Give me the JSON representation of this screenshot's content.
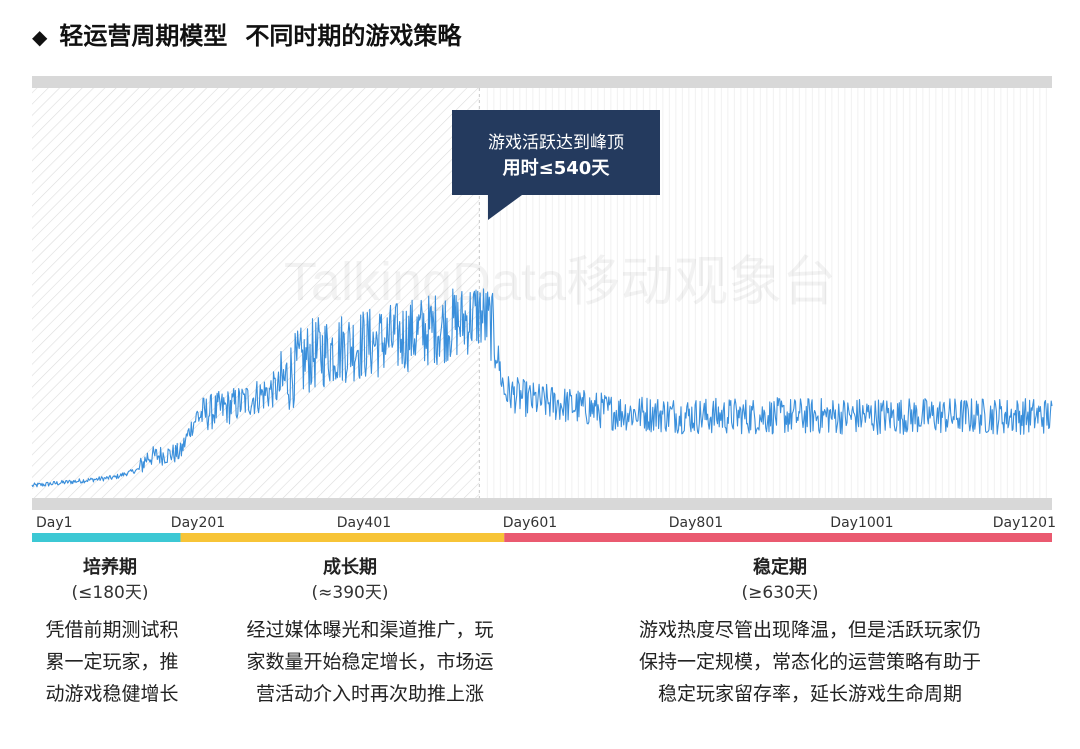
{
  "header": {
    "title_main": "轻运营周期模型",
    "title_sub": "不同时期的游戏策略"
  },
  "callout": {
    "line1": "游戏活跃达到峰顶",
    "line2": "用时≤540天"
  },
  "watermark": "TalkingData移动观象台",
  "colors": {
    "line": "#3a8fdb",
    "callout_bg": "#243a5e",
    "phase1": "#3cc8d4",
    "phase2": "#f7c437",
    "phase3": "#ea5a70",
    "band": "#d8d8d8"
  },
  "phases": [
    {
      "name": "培养期",
      "duration": "(≤180天)",
      "desc": [
        "凭借前期测试积",
        "累一定玩家，推",
        "动游戏稳健增长"
      ]
    },
    {
      "name": "成长期",
      "duration": "(≈390天)",
      "desc": [
        "经过媒体曝光和渠道推广，玩",
        "家数量开始稳定增长，市场运",
        "营活动介入时再次助推上涨"
      ]
    },
    {
      "name": "稳定期",
      "duration": "(≥630天)",
      "desc": [
        "游戏热度尽管出现降温，但是活跃玩家仍",
        "保持一定规模，常态化的运营策略有助于",
        "稳定玩家留存率，延长游戏生命周期"
      ]
    }
  ],
  "chart_data": {
    "type": "line",
    "x_ticks": [
      "Day1",
      "Day201",
      "Day401",
      "Day601",
      "Day801",
      "Day1001",
      "Day1201"
    ],
    "x_range": [
      1,
      1230
    ],
    "y_axis_visible": false,
    "grid": false,
    "series": [
      {
        "points": [
          [
            1,
            0.03
          ],
          [
            100,
            0.05
          ],
          [
            130,
            0.07
          ],
          [
            140,
            0.1
          ],
          [
            180,
            0.11
          ],
          [
            190,
            0.16
          ],
          [
            200,
            0.2
          ],
          [
            250,
            0.23
          ],
          [
            300,
            0.27
          ],
          [
            320,
            0.32
          ],
          [
            340,
            0.35
          ],
          [
            380,
            0.37
          ],
          [
            420,
            0.38
          ],
          [
            460,
            0.4
          ],
          [
            520,
            0.43
          ],
          [
            540,
            0.45
          ],
          [
            555,
            0.42
          ],
          [
            570,
            0.26
          ],
          [
            600,
            0.24
          ],
          [
            700,
            0.21
          ],
          [
            800,
            0.2
          ],
          [
            900,
            0.2
          ],
          [
            1000,
            0.2
          ],
          [
            1100,
            0.2
          ],
          [
            1200,
            0.2
          ],
          [
            1230,
            0.2
          ]
        ]
      }
    ],
    "highlight_range": [
      1,
      540
    ],
    "phase_ranges": [
      [
        1,
        180
      ],
      [
        180,
        570
      ],
      [
        570,
        1230
      ]
    ]
  }
}
